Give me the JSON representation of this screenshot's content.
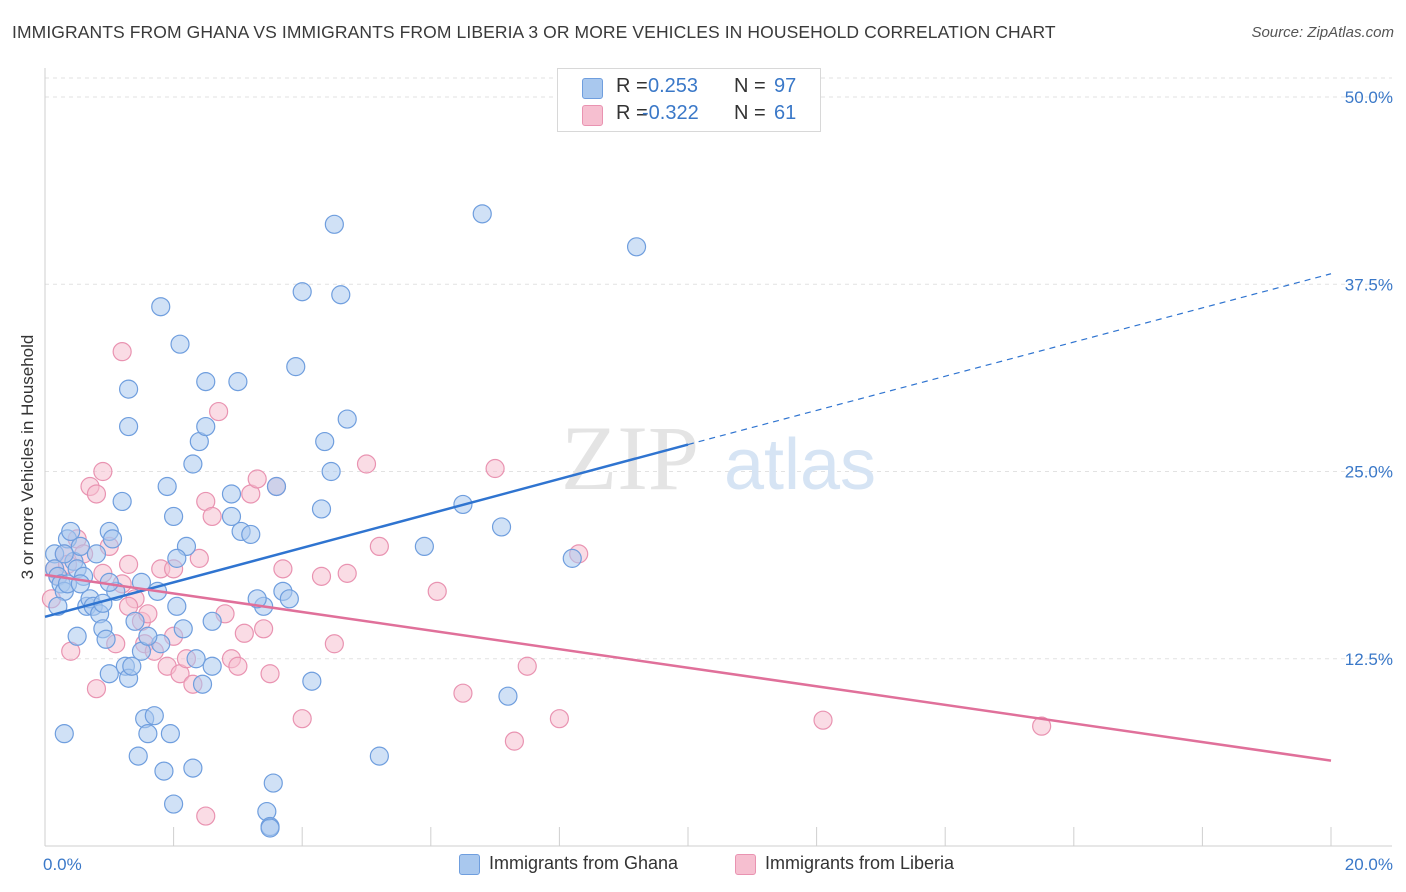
{
  "title": "IMMIGRANTS FROM GHANA VS IMMIGRANTS FROM LIBERIA 3 OR MORE VEHICLES IN HOUSEHOLD CORRELATION CHART",
  "source": "Source: ZipAtlas.com",
  "watermark": {
    "zip": "ZIP",
    "atlas": "atlas"
  },
  "colors": {
    "ghana_fill": "#a9c8ee",
    "ghana_stroke": "#6f9ede",
    "ghana_line": "#2f74d0",
    "liberia_fill": "#f6bfd0",
    "liberia_stroke": "#e993b1",
    "liberia_line": "#e0709a",
    "axis_text": "#3a78c8",
    "grid": "#e2e2e2"
  },
  "legend_top": {
    "rows": [
      {
        "r_label": "R =",
        "r_value": "0.253",
        "n_label": "N =",
        "n_value": "97"
      },
      {
        "r_label": "R =",
        "r_value": "-0.322",
        "n_label": "N =",
        "n_value": "61"
      }
    ]
  },
  "legend_bottom": [
    "Immigrants from Ghana",
    "Immigrants from Liberia"
  ],
  "chart_data": {
    "type": "scatter",
    "title": "IMMIGRANTS FROM GHANA VS IMMIGRANTS FROM LIBERIA 3 OR MORE VEHICLES IN HOUSEHOLD CORRELATION CHART",
    "xlabel": "",
    "ylabel": "3 or more Vehicles in Household",
    "xlim": [
      0,
      20
    ],
    "ylim": [
      0,
      50
    ],
    "x_tick_labels": [
      "0.0%",
      "20.0%"
    ],
    "y_tick_values": [
      12.5,
      25.0,
      37.5,
      50.0
    ],
    "y_tick_labels": [
      "12.5%",
      "25.0%",
      "37.5%",
      "50.0%"
    ],
    "grid": true,
    "legend_position": "top-center",
    "series": [
      {
        "name": "Immigrants from Ghana",
        "r": 0.253,
        "n": 97,
        "trend": {
          "x0": 0,
          "y0": 15.3,
          "x1": 10,
          "y1": 26.8,
          "dashed_to_x": 20,
          "dashed_to_y": 38.2
        },
        "points": [
          [
            0.15,
            19.5
          ],
          [
            0.15,
            18.5
          ],
          [
            0.2,
            18
          ],
          [
            0.25,
            17.5
          ],
          [
            0.3,
            17
          ],
          [
            0.35,
            20.5
          ],
          [
            0.4,
            21
          ],
          [
            0.45,
            19
          ],
          [
            0.5,
            18.5
          ],
          [
            0.55,
            20
          ],
          [
            0.6,
            18
          ],
          [
            0.65,
            16
          ],
          [
            0.7,
            16.5
          ],
          [
            0.75,
            16
          ],
          [
            0.8,
            19.5
          ],
          [
            0.85,
            15.5
          ],
          [
            0.9,
            14.5
          ],
          [
            0.95,
            13.8
          ],
          [
            1.0,
            21
          ],
          [
            1.05,
            20.5
          ],
          [
            0.2,
            16
          ],
          [
            0.3,
            7.5
          ],
          [
            0.3,
            19.5
          ],
          [
            0.35,
            17.5
          ],
          [
            0.5,
            14
          ],
          [
            0.55,
            17.5
          ],
          [
            1.0,
            11.5
          ],
          [
            1.1,
            17
          ],
          [
            1.2,
            23
          ],
          [
            1.25,
            12
          ],
          [
            1.3,
            11.2
          ],
          [
            1.35,
            12
          ],
          [
            1.4,
            15
          ],
          [
            1.45,
            6
          ],
          [
            1.5,
            13
          ],
          [
            1.55,
            8.5
          ],
          [
            1.6,
            7.5
          ],
          [
            1.7,
            8.7
          ],
          [
            1.75,
            17
          ],
          [
            1.8,
            13.5
          ],
          [
            1.85,
            5
          ],
          [
            1.95,
            7.5
          ],
          [
            2.0,
            2.8
          ],
          [
            2.05,
            16
          ],
          [
            2.15,
            14.5
          ],
          [
            2.2,
            20
          ],
          [
            2.3,
            5.2
          ],
          [
            2.35,
            12.5
          ],
          [
            2.45,
            10.8
          ],
          [
            1.3,
            28
          ],
          [
            1.3,
            30.5
          ],
          [
            1.8,
            36
          ],
          [
            1.9,
            24
          ],
          [
            2.0,
            22
          ],
          [
            2.1,
            33.5
          ],
          [
            2.3,
            25.5
          ],
          [
            2.5,
            31
          ],
          [
            2.4,
            27
          ],
          [
            2.5,
            28
          ],
          [
            2.6,
            15
          ],
          [
            2.9,
            22
          ],
          [
            3.0,
            31
          ],
          [
            3.05,
            21
          ],
          [
            3.2,
            20.8
          ],
          [
            3.45,
            2.3
          ],
          [
            3.5,
            1.3
          ],
          [
            3.55,
            4.2
          ],
          [
            3.6,
            24
          ],
          [
            3.7,
            17
          ],
          [
            3.8,
            16.5
          ],
          [
            3.9,
            32
          ],
          [
            4.0,
            37
          ],
          [
            4.15,
            11
          ],
          [
            4.35,
            27
          ],
          [
            4.3,
            22.5
          ],
          [
            4.45,
            25
          ],
          [
            4.5,
            41.5
          ],
          [
            4.6,
            36.8
          ],
          [
            4.7,
            28.5
          ],
          [
            5.2,
            6
          ],
          [
            5.9,
            20
          ],
          [
            6.5,
            22.8
          ],
          [
            6.8,
            42.2
          ],
          [
            7.1,
            21.3
          ],
          [
            7.2,
            10
          ],
          [
            8.2,
            19.2
          ],
          [
            9.2,
            40
          ],
          [
            3.4,
            16
          ],
          [
            2.9,
            23.5
          ],
          [
            1.6,
            14
          ],
          [
            0.9,
            16.2
          ],
          [
            1.5,
            17.6
          ],
          [
            2.05,
            19.2
          ],
          [
            2.6,
            12
          ],
          [
            3.3,
            16.5
          ],
          [
            3.5,
            1.2
          ],
          [
            1.0,
            17.6
          ]
        ]
      },
      {
        "name": "Immigrants from Liberia",
        "r": -0.322,
        "n": 61,
        "trend": {
          "x0": 0,
          "y0": 18.1,
          "x1": 20,
          "y1": 5.7
        },
        "points": [
          [
            0.1,
            16.5
          ],
          [
            0.15,
            18.5
          ],
          [
            0.2,
            18
          ],
          [
            0.3,
            19.5
          ],
          [
            0.35,
            18.8
          ],
          [
            0.4,
            13
          ],
          [
            0.5,
            20.5
          ],
          [
            0.6,
            19.5
          ],
          [
            0.7,
            24
          ],
          [
            0.8,
            23.5
          ],
          [
            0.9,
            18.2
          ],
          [
            1.0,
            20
          ],
          [
            1.1,
            13.5
          ],
          [
            1.2,
            17.5
          ],
          [
            1.3,
            18.8
          ],
          [
            1.4,
            16.5
          ],
          [
            1.5,
            15
          ],
          [
            1.55,
            13.5
          ],
          [
            1.6,
            15.5
          ],
          [
            1.7,
            13
          ],
          [
            1.8,
            18.5
          ],
          [
            1.9,
            12
          ],
          [
            2.0,
            14
          ],
          [
            2.1,
            11.5
          ],
          [
            2.2,
            12.5
          ],
          [
            2.3,
            10.8
          ],
          [
            2.4,
            19.2
          ],
          [
            2.5,
            23
          ],
          [
            2.6,
            22
          ],
          [
            2.7,
            29
          ],
          [
            2.8,
            15.5
          ],
          [
            2.9,
            12.5
          ],
          [
            3.0,
            12
          ],
          [
            3.1,
            14.2
          ],
          [
            3.2,
            23.5
          ],
          [
            3.3,
            24.5
          ],
          [
            3.4,
            14.5
          ],
          [
            3.5,
            11.5
          ],
          [
            3.6,
            24
          ],
          [
            3.7,
            18.5
          ],
          [
            4.0,
            8.5
          ],
          [
            4.3,
            18
          ],
          [
            4.5,
            13.5
          ],
          [
            4.7,
            18.2
          ],
          [
            5.0,
            25.5
          ],
          [
            5.2,
            20
          ],
          [
            6.1,
            17
          ],
          [
            6.5,
            10.2
          ],
          [
            7.0,
            25.2
          ],
          [
            7.3,
            7
          ],
          [
            7.5,
            12
          ],
          [
            8.0,
            8.5
          ],
          [
            8.3,
            19.5
          ],
          [
            12.1,
            8.4
          ],
          [
            15.5,
            8
          ],
          [
            2.5,
            2
          ],
          [
            1.2,
            33
          ],
          [
            0.9,
            25
          ],
          [
            1.3,
            16
          ],
          [
            2.0,
            18.5
          ],
          [
            0.8,
            10.5
          ]
        ]
      }
    ]
  }
}
